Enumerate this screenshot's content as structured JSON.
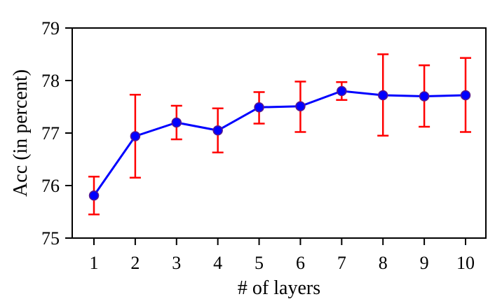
{
  "chart_data": {
    "type": "line",
    "xlabel": "# of layers",
    "ylabel": "Acc (in percent)",
    "x": [
      1,
      2,
      3,
      4,
      5,
      6,
      7,
      8,
      9,
      10
    ],
    "series": [
      {
        "values": [
          75.81,
          76.94,
          77.2,
          77.05,
          77.49,
          77.51,
          77.8,
          77.72,
          77.7,
          77.72
        ],
        "err_low": [
          75.45,
          76.15,
          76.88,
          76.63,
          77.18,
          77.02,
          77.63,
          76.95,
          77.12,
          77.02
        ],
        "err_high": [
          76.17,
          77.73,
          77.52,
          77.47,
          77.78,
          77.98,
          77.97,
          78.5,
          78.29,
          78.43
        ],
        "line_color": "#0000ff",
        "errorbar_color": "#ff0000"
      }
    ],
    "xlim": [
      0.5,
      10.5
    ],
    "ylim": [
      75,
      79
    ],
    "xticks": [
      "1",
      "2",
      "3",
      "4",
      "5",
      "6",
      "7",
      "8",
      "9",
      "10"
    ],
    "yticks": [
      "75",
      "76",
      "77",
      "78",
      "79"
    ],
    "grid": false,
    "legend": "none"
  }
}
